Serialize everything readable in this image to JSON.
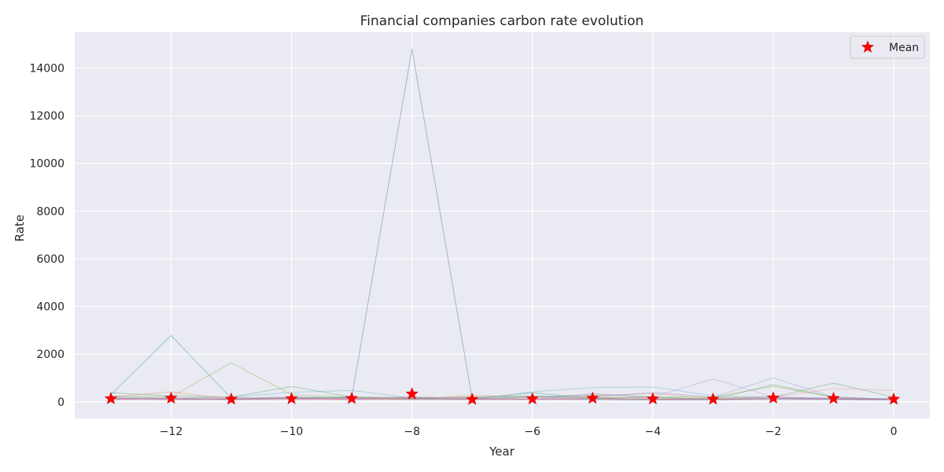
{
  "chart_data": {
    "type": "line",
    "title": "Financial companies carbon rate evolution",
    "xlabel": "Year",
    "ylabel": "Rate",
    "xlim": [
      -13.6,
      0.6
    ],
    "ylim": [
      -700,
      15500
    ],
    "x_ticks": [
      -12,
      -10,
      -8,
      -6,
      -4,
      -2,
      0
    ],
    "x_tick_labels": [
      "−12",
      "−10",
      "−8",
      "−6",
      "−4",
      "−2",
      "0"
    ],
    "y_ticks": [
      0,
      2000,
      4000,
      6000,
      8000,
      10000,
      12000,
      14000
    ],
    "y_tick_labels": [
      "0",
      "2000",
      "4000",
      "6000",
      "8000",
      "10000",
      "12000",
      "14000"
    ],
    "grid": true,
    "legend_position": "top-right",
    "background": "#eaeaf2",
    "companies": [
      {
        "color": "#4c72b0",
        "x": [
          -13,
          -12,
          -11,
          -10,
          -9,
          -8,
          -7,
          -6,
          -5,
          -4,
          -3,
          -2,
          -1,
          0
        ],
        "values": [
          150,
          120,
          100,
          130,
          180,
          14800,
          130,
          120,
          100,
          80,
          90,
          120,
          100,
          80
        ]
      },
      {
        "color": "#2ca58d",
        "x": [
          -13,
          -12,
          -11,
          -10,
          -9,
          -8,
          -7,
          -6,
          -5,
          -4,
          -3,
          -2,
          -1,
          0
        ],
        "values": [
          300,
          2780,
          150,
          200,
          150,
          100,
          120,
          380,
          150,
          200,
          100,
          150,
          120,
          100
        ]
      },
      {
        "color": "#8fae4a",
        "x": [
          -13,
          -12,
          -11,
          -10,
          -9,
          -8,
          -7,
          -6,
          -5,
          -4,
          -3,
          -2,
          -1,
          0
        ],
        "values": [
          250,
          200,
          1640,
          300,
          200,
          150,
          200,
          250,
          150,
          200,
          200,
          650,
          200,
          100
        ]
      },
      {
        "color": "#55a868",
        "x": [
          -13,
          -12,
          -11,
          -10,
          -9,
          -8,
          -7,
          -6,
          -5,
          -4,
          -3,
          -2,
          -1,
          0
        ],
        "values": [
          380,
          250,
          200,
          640,
          200,
          150,
          180,
          200,
          300,
          200,
          100,
          720,
          200,
          100
        ]
      },
      {
        "color": "#dd8452",
        "x": [
          -13,
          -12,
          -11,
          -10,
          -9,
          -8,
          -7,
          -6,
          -5,
          -4,
          -3,
          -2,
          -1,
          0
        ],
        "values": [
          200,
          420,
          100,
          200,
          150,
          100,
          270,
          200,
          250,
          350,
          150,
          200,
          150,
          100
        ]
      },
      {
        "color": "#64b5cd",
        "x": [
          -13,
          -12,
          -11,
          -10,
          -9,
          -8,
          -7,
          -6,
          -5,
          -4,
          -3,
          -2,
          -1,
          0
        ],
        "values": [
          100,
          150,
          200,
          400,
          480,
          150,
          100,
          420,
          600,
          620,
          250,
          200,
          100,
          150
        ]
      },
      {
        "color": "#b18bd9",
        "x": [
          -13,
          -12,
          -11,
          -10,
          -9,
          -8,
          -7,
          -6,
          -5,
          -4,
          -3,
          -2,
          -1,
          0
        ],
        "values": [
          150,
          100,
          150,
          150,
          100,
          200,
          150,
          100,
          350,
          200,
          960,
          200,
          150,
          100
        ]
      },
      {
        "color": "#8da0e0",
        "x": [
          -13,
          -12,
          -11,
          -10,
          -9,
          -8,
          -7,
          -6,
          -5,
          -4,
          -3,
          -2,
          -1,
          0
        ],
        "values": [
          100,
          150,
          100,
          200,
          150,
          200,
          150,
          250,
          200,
          400,
          200,
          1000,
          200,
          100
        ]
      },
      {
        "color": "#4fa86f",
        "x": [
          -13,
          -12,
          -11,
          -10,
          -9,
          -8,
          -7,
          -6,
          -5,
          -4,
          -3,
          -2,
          -1,
          0
        ],
        "values": [
          200,
          150,
          100,
          150,
          200,
          150,
          100,
          200,
          150,
          100,
          150,
          200,
          780,
          200
        ]
      },
      {
        "color": "#e8909a",
        "x": [
          -13,
          -12,
          -11,
          -10,
          -9,
          -8,
          -7,
          -6,
          -5,
          -4,
          -3,
          -2,
          -1,
          0
        ],
        "values": [
          100,
          150,
          200,
          100,
          150,
          200,
          150,
          100,
          200,
          150,
          100,
          200,
          550,
          480
        ]
      },
      {
        "color": "#da70d6",
        "x": [
          -13,
          -12,
          -11,
          -10,
          -9,
          -8,
          -7,
          -6,
          -5,
          -4,
          -3,
          -2,
          -1,
          0
        ],
        "values": [
          150,
          120,
          100,
          130,
          120,
          110,
          100,
          120,
          130,
          110,
          100,
          140,
          150,
          90
        ]
      },
      {
        "color": "#c44e52",
        "x": [
          -13,
          -12,
          -11,
          -10,
          -9,
          -8,
          -7,
          -6,
          -5,
          -4,
          -3,
          -2,
          -1,
          0
        ],
        "values": [
          120,
          100,
          110,
          120,
          100,
          130,
          110,
          100,
          120,
          110,
          100,
          120,
          110,
          100
        ]
      }
    ],
    "mean_series": {
      "name": "Mean",
      "color": "#ff0000",
      "x": [
        -13,
        -12,
        -11,
        -10,
        -9,
        -8,
        -7,
        -6,
        -5,
        -4,
        -3,
        -2,
        -1,
        0
      ],
      "values": [
        130,
        150,
        110,
        130,
        140,
        330,
        100,
        120,
        150,
        120,
        110,
        160,
        140,
        110
      ]
    }
  }
}
